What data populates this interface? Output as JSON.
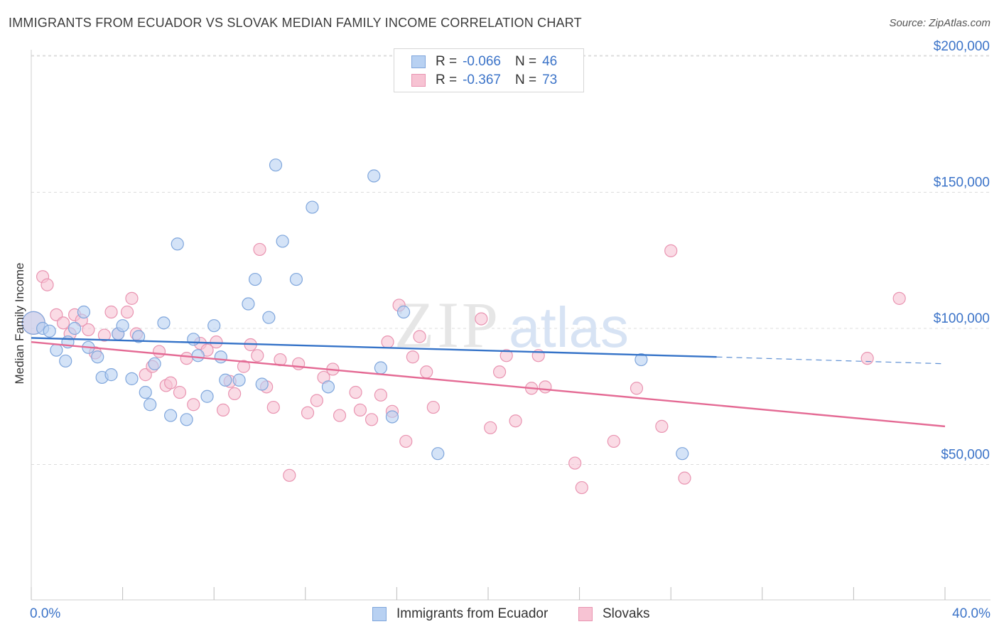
{
  "title": "IMMIGRANTS FROM ECUADOR VS SLOVAK MEDIAN FAMILY INCOME CORRELATION CHART",
  "source": "Source: ZipAtlas.com",
  "watermark": {
    "zip": "ZIP",
    "atlas": "atlas"
  },
  "legend": {
    "rows": [
      {
        "r_label": "R =",
        "r_value": "-0.066",
        "n_label": "N =",
        "n_value": "46"
      },
      {
        "r_label": "R =",
        "r_value": "-0.367",
        "n_label": "N =",
        "n_value": "73"
      }
    ]
  },
  "colors": {
    "ecuador_fill": "#b8d1f2",
    "ecuador_stroke": "#7fa6dc",
    "ecuador_line": "#3573c8",
    "slovak_fill": "#f7c3d3",
    "slovak_stroke": "#e994b1",
    "slovak_line": "#e46a94",
    "axis_label": "#3b73c8",
    "grid": "#dcdcdc"
  },
  "chart_data": {
    "type": "scatter",
    "title": "IMMIGRANTS FROM ECUADOR VS SLOVAK MEDIAN FAMILY INCOME CORRELATION CHART",
    "xlabel": "",
    "ylabel": "Median Family Income",
    "xlim": [
      0,
      40
    ],
    "ylim": [
      0,
      210000
    ],
    "x_tick_labels": [
      "0.0%",
      "40.0%"
    ],
    "y_ticks": [
      {
        "value": 50000,
        "label": "$50,000"
      },
      {
        "value": 100000,
        "label": "$100,000"
      },
      {
        "value": 150000,
        "label": "$150,000"
      },
      {
        "value": 200000,
        "label": "$200,000"
      }
    ],
    "grid": true,
    "legend_position": "top-center",
    "series": [
      {
        "name": "Immigrants from Ecuador",
        "color": "#7fa6dc",
        "points": [
          [
            0.1,
            102000
          ],
          [
            0.5,
            100000
          ],
          [
            0.8,
            99000
          ],
          [
            1.1,
            92000
          ],
          [
            1.5,
            88000
          ],
          [
            1.6,
            95000
          ],
          [
            1.9,
            100000
          ],
          [
            2.3,
            106000
          ],
          [
            2.5,
            93000
          ],
          [
            2.9,
            89500
          ],
          [
            3.1,
            82000
          ],
          [
            3.5,
            83000
          ],
          [
            3.8,
            98000
          ],
          [
            4.0,
            101000
          ],
          [
            4.4,
            81500
          ],
          [
            4.7,
            97000
          ],
          [
            5.0,
            76500
          ],
          [
            5.2,
            72000
          ],
          [
            5.4,
            87000
          ],
          [
            5.8,
            102000
          ],
          [
            6.1,
            68000
          ],
          [
            6.4,
            131000
          ],
          [
            6.8,
            66500
          ],
          [
            7.1,
            96000
          ],
          [
            7.3,
            90000
          ],
          [
            7.7,
            75000
          ],
          [
            8.0,
            101000
          ],
          [
            8.3,
            89500
          ],
          [
            8.5,
            81000
          ],
          [
            9.1,
            81000
          ],
          [
            9.5,
            109000
          ],
          [
            9.8,
            118000
          ],
          [
            10.1,
            79500
          ],
          [
            10.4,
            104000
          ],
          [
            10.7,
            160000
          ],
          [
            11.0,
            132000
          ],
          [
            11.6,
            118000
          ],
          [
            12.3,
            144500
          ],
          [
            13.0,
            78500
          ],
          [
            15.0,
            156000
          ],
          [
            15.3,
            85500
          ],
          [
            15.8,
            67500
          ],
          [
            16.3,
            106000
          ],
          [
            17.8,
            54000
          ],
          [
            26.7,
            88500
          ],
          [
            28.5,
            54000
          ]
        ]
      },
      {
        "name": "Slovaks",
        "color": "#e994b1",
        "points": [
          [
            0.1,
            102000
          ],
          [
            0.5,
            119000
          ],
          [
            0.7,
            116000
          ],
          [
            1.1,
            105000
          ],
          [
            1.4,
            102000
          ],
          [
            1.7,
            98000
          ],
          [
            1.9,
            105000
          ],
          [
            2.2,
            103000
          ],
          [
            2.5,
            99500
          ],
          [
            2.8,
            91000
          ],
          [
            3.2,
            97500
          ],
          [
            3.5,
            106000
          ],
          [
            3.8,
            98000
          ],
          [
            4.2,
            106000
          ],
          [
            4.4,
            111000
          ],
          [
            4.6,
            98000
          ],
          [
            5.0,
            83000
          ],
          [
            5.3,
            86000
          ],
          [
            5.6,
            91500
          ],
          [
            5.9,
            79000
          ],
          [
            6.1,
            80000
          ],
          [
            6.5,
            76500
          ],
          [
            6.8,
            89000
          ],
          [
            7.1,
            72000
          ],
          [
            7.4,
            94500
          ],
          [
            7.7,
            92000
          ],
          [
            8.1,
            95000
          ],
          [
            8.4,
            70000
          ],
          [
            8.7,
            80500
          ],
          [
            8.9,
            76000
          ],
          [
            9.3,
            86000
          ],
          [
            9.6,
            94000
          ],
          [
            9.9,
            90000
          ],
          [
            10.0,
            129000
          ],
          [
            10.3,
            78500
          ],
          [
            10.6,
            71000
          ],
          [
            10.9,
            88500
          ],
          [
            11.3,
            46000
          ],
          [
            11.7,
            87000
          ],
          [
            12.1,
            69000
          ],
          [
            12.5,
            73500
          ],
          [
            12.8,
            82000
          ],
          [
            13.2,
            85000
          ],
          [
            13.5,
            68000
          ],
          [
            14.2,
            76500
          ],
          [
            14.4,
            70000
          ],
          [
            14.9,
            66500
          ],
          [
            15.3,
            75500
          ],
          [
            15.6,
            95000
          ],
          [
            15.8,
            69500
          ],
          [
            16.1,
            108500
          ],
          [
            16.4,
            58500
          ],
          [
            16.7,
            89500
          ],
          [
            17.0,
            97000
          ],
          [
            17.3,
            84000
          ],
          [
            17.6,
            71000
          ],
          [
            19.7,
            103500
          ],
          [
            20.1,
            63500
          ],
          [
            20.5,
            84000
          ],
          [
            20.8,
            90000
          ],
          [
            21.2,
            66000
          ],
          [
            21.9,
            78000
          ],
          [
            22.2,
            90000
          ],
          [
            22.5,
            78500
          ],
          [
            23.8,
            50500
          ],
          [
            24.1,
            41500
          ],
          [
            25.5,
            58500
          ],
          [
            26.5,
            78000
          ],
          [
            27.6,
            64000
          ],
          [
            28.0,
            128500
          ],
          [
            28.6,
            45000
          ],
          [
            36.6,
            89000
          ],
          [
            38.0,
            111000
          ]
        ]
      }
    ],
    "trend_lines": [
      {
        "series": "Immigrants from Ecuador",
        "x": [
          0,
          30.0
        ],
        "y": [
          96500,
          89500
        ],
        "dashed_extension_to": [
          40,
          87000
        ]
      },
      {
        "series": "Slovaks",
        "x": [
          0,
          40
        ],
        "y": [
          95000,
          64000
        ]
      }
    ]
  }
}
